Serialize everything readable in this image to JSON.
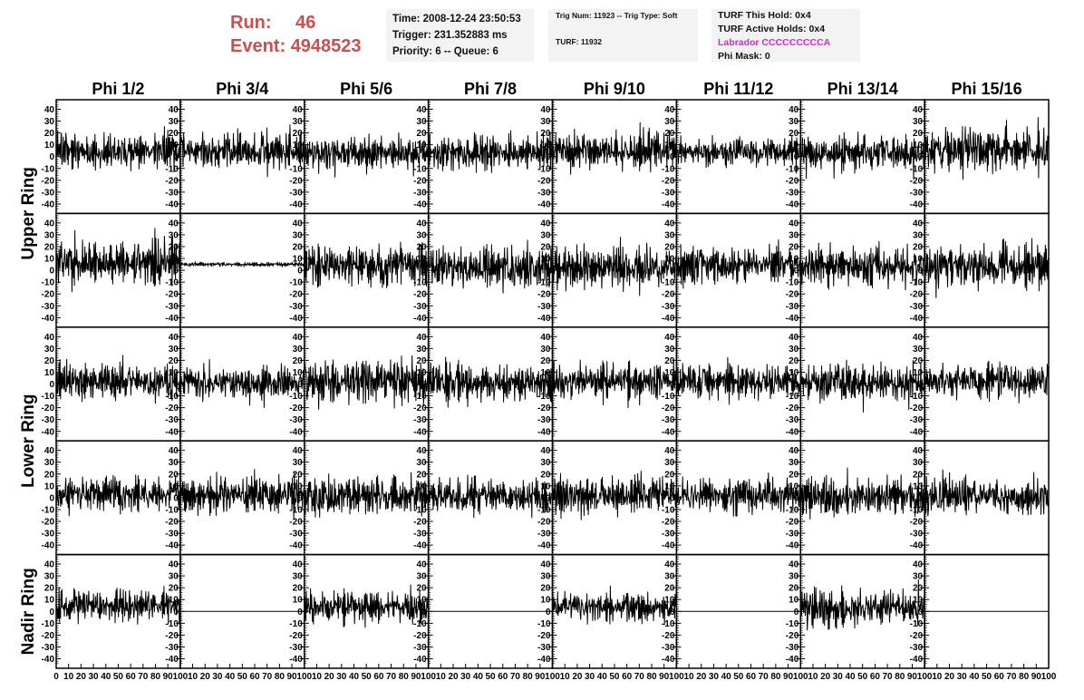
{
  "header": {
    "run_label": "Run:",
    "run_value": "46",
    "event_label": "Event:",
    "event_value": "4948523"
  },
  "info_time": {
    "time": "Time: 2008-12-24 23:50:53",
    "trigger": "Trigger: 231.352883 ms",
    "priority": "Priority: 6 -- Queue: 6"
  },
  "info_trig": {
    "trig": "Trig Num: 11923 -- Trig Type: Soft",
    "turf": "TURF: 11932"
  },
  "info_turf": {
    "this_hold": "TURF This Hold: 0x4",
    "active_holds": "TURF Active Holds: 0x4",
    "labrador": "Labrador CCCCCCCCCA",
    "phi_mask": "Phi Mask: 0",
    "labrador_color": "#e020d8"
  },
  "chart_data": {
    "type": "line",
    "columns": [
      "Phi 1/2",
      "Phi 3/4",
      "Phi 5/6",
      "Phi 7/8",
      "Phi 9/10",
      "Phi 11/12",
      "Phi 13/14",
      "Phi 15/16"
    ],
    "rows": [
      "Upper Ring",
      "Upper Ring",
      "Lower Ring",
      "Lower Ring",
      "Nadir Ring"
    ],
    "row_labels": [
      "Upper Ring",
      "Lower Ring",
      "Nadir Ring"
    ],
    "xlim": [
      0,
      100
    ],
    "ylim": [
      -48,
      48
    ],
    "x_ticks": [
      0,
      10,
      20,
      30,
      40,
      50,
      60,
      70,
      80,
      90,
      100
    ],
    "y_ticks": [
      -40,
      -30,
      -20,
      -10,
      0,
      10,
      20,
      30,
      40
    ],
    "line_color": "#000000",
    "series_note_samples_per_trace": 260,
    "traces": [
      [
        {
          "offset": 4,
          "amp": 14,
          "seed": 11
        },
        {
          "offset": 5,
          "amp": 14,
          "seed": 12
        },
        {
          "offset": 3,
          "amp": 13,
          "seed": 13
        },
        {
          "offset": 3,
          "amp": 12,
          "seed": 14
        },
        {
          "offset": 6,
          "amp": 14,
          "seed": 15
        },
        {
          "offset": 4,
          "amp": 10,
          "seed": 16
        },
        {
          "offset": 3,
          "amp": 14,
          "seed": 17
        },
        {
          "offset": 6,
          "amp": 16,
          "seed": 18
        }
      ],
      [
        {
          "offset": 7,
          "amp": 16,
          "seed": 21
        },
        {
          "offset": 5,
          "amp": 1.5,
          "seed": 22
        },
        {
          "offset": 4,
          "amp": 15,
          "seed": 23
        },
        {
          "offset": 2,
          "amp": 15,
          "seed": 24
        },
        {
          "offset": 3,
          "amp": 15,
          "seed": 25
        },
        {
          "offset": 4,
          "amp": 13,
          "seed": 26
        },
        {
          "offset": 4,
          "amp": 15,
          "seed": 27
        },
        {
          "offset": 3,
          "amp": 17,
          "seed": 28
        }
      ],
      [
        {
          "offset": 2,
          "amp": 14,
          "seed": 31
        },
        {
          "offset": 1,
          "amp": 12,
          "seed": 32
        },
        {
          "offset": 2,
          "amp": 16,
          "seed": 33
        },
        {
          "offset": 1,
          "amp": 13,
          "seed": 34
        },
        {
          "offset": 2,
          "amp": 13,
          "seed": 35
        },
        {
          "offset": 2,
          "amp": 12,
          "seed": 36
        },
        {
          "offset": 1,
          "amp": 14,
          "seed": 37
        },
        {
          "offset": 3,
          "amp": 13,
          "seed": 38
        }
      ],
      [
        {
          "offset": 3,
          "amp": 12,
          "seed": 41
        },
        {
          "offset": 2,
          "amp": 13,
          "seed": 42
        },
        {
          "offset": 1,
          "amp": 14,
          "seed": 43
        },
        {
          "offset": 1,
          "amp": 13,
          "seed": 44
        },
        {
          "offset": 2,
          "amp": 13,
          "seed": 45
        },
        {
          "offset": 2,
          "amp": 13,
          "seed": 46
        },
        {
          "offset": 1,
          "amp": 14,
          "seed": 47
        },
        {
          "offset": 1,
          "amp": 15,
          "seed": 48
        }
      ],
      [
        {
          "offset": 5,
          "amp": 12,
          "seed": 51
        },
        {
          "offset": 0,
          "amp": 0,
          "seed": 52
        },
        {
          "offset": 4,
          "amp": 11,
          "seed": 53
        },
        {
          "offset": 0,
          "amp": 0,
          "seed": 54
        },
        {
          "offset": 4,
          "amp": 11,
          "seed": 55
        },
        {
          "offset": 0,
          "amp": 0,
          "seed": 56
        },
        {
          "offset": 3,
          "amp": 14,
          "seed": 57
        },
        {
          "offset": 0,
          "amp": 0,
          "seed": 58
        }
      ]
    ]
  }
}
